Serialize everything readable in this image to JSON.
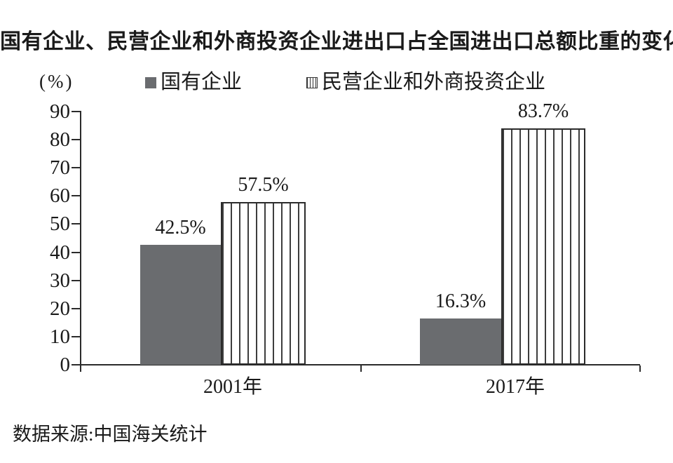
{
  "title": "国有企业、民营企业和外商投资企业进出口占全国进出口总额比重的变化",
  "y_axis_unit": "(%)",
  "legend": [
    {
      "label": "国有企业",
      "swatch": "solid-gray-square"
    },
    {
      "label": "民营企业和外商投资企业",
      "swatch": "striped-square"
    }
  ],
  "source_note": "数据来源:中国海关统计",
  "colors": {
    "bar_solid": "#6a6c6f",
    "stripe_line": "#3d3d3d",
    "axis": "#2b2b2b",
    "text": "#1a1a1a",
    "background": "#ffffff"
  },
  "chart_data": {
    "type": "bar",
    "categories": [
      "2001年",
      "2017年"
    ],
    "series": [
      {
        "name": "国有企业",
        "style": "solid",
        "values": [
          42.5,
          16.3
        ],
        "labels": [
          "42.5%",
          "16.3%"
        ]
      },
      {
        "name": "民营企业和外商投资企业",
        "style": "striped",
        "values": [
          57.5,
          83.7
        ],
        "labels": [
          "57.5%",
          "83.7%"
        ]
      }
    ],
    "ylabel": "(%)",
    "ylim": [
      0,
      90
    ],
    "yticks": [
      0,
      10,
      20,
      30,
      40,
      50,
      60,
      70,
      80,
      90
    ],
    "grid": false,
    "legend_position": "top"
  }
}
